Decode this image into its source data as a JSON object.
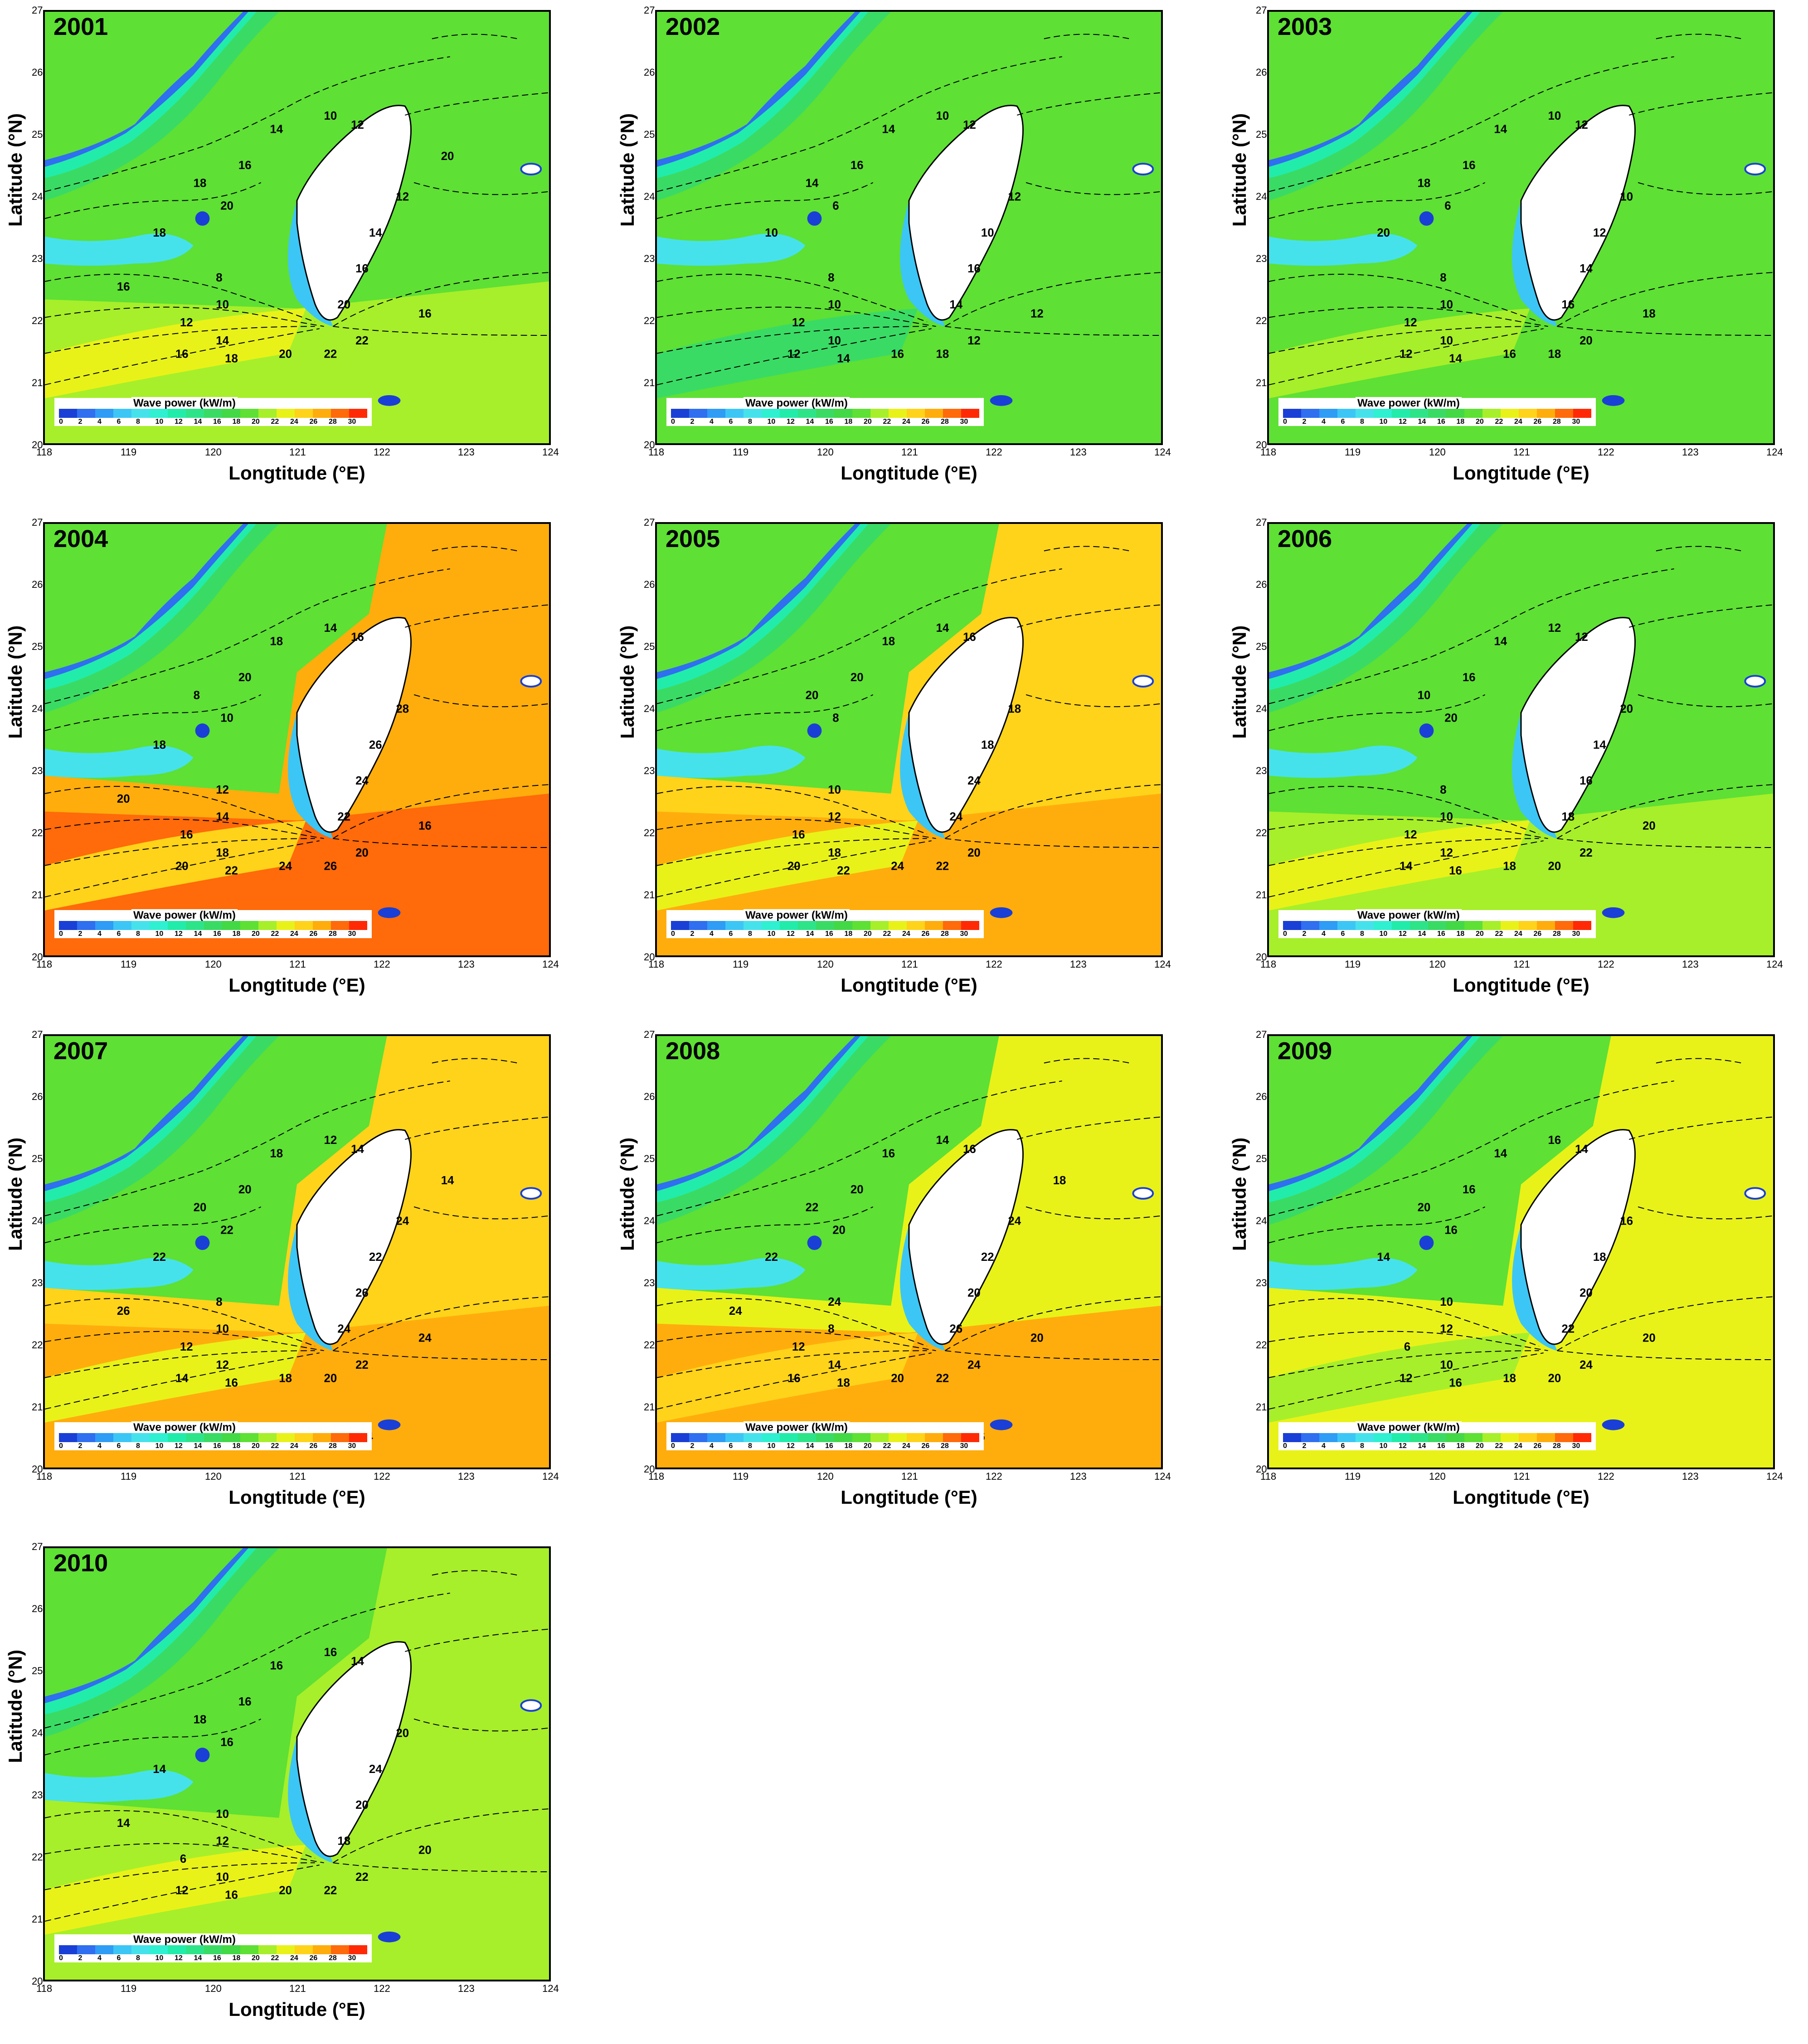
{
  "legend": {
    "title": "Wave power (kW/m)",
    "levels": [
      "0",
      "2",
      "4",
      "6",
      "8",
      "10",
      "12",
      "14",
      "16",
      "18",
      "20",
      "22",
      "24",
      "26",
      "28",
      "30"
    ],
    "colors": [
      "#1a3fd6",
      "#2f6ff0",
      "#2f9cf5",
      "#3cc6f5",
      "#46e2ec",
      "#2ff0d0",
      "#22ecaa",
      "#2ee489",
      "#3adb64",
      "#43d845",
      "#5ee034",
      "#a7ef2a",
      "#e8f219",
      "#ffd31a",
      "#ffad0c",
      "#ff6a0a",
      "#ff2a05"
    ]
  },
  "axes": {
    "xlabel": "Longtitude (°E)",
    "ylabel": "Latitude (°N)",
    "xticks": [
      "118",
      "119",
      "120",
      "121",
      "122",
      "123",
      "124"
    ],
    "yticks": [
      "27",
      "26",
      "25",
      "24",
      "23",
      "22",
      "21",
      "20"
    ]
  },
  "panels": [
    {
      "year": "2001",
      "east": "#5ee034",
      "south": "#a7ef2a",
      "south2": "#e8f219",
      "labels": [
        "10",
        "12",
        "14",
        "16",
        "18",
        "20",
        "8",
        "10",
        "12",
        "14",
        "16",
        "18",
        "20",
        "22",
        "22",
        "20",
        "16",
        "14",
        "12",
        "16",
        "18",
        "16",
        "20"
      ]
    },
    {
      "year": "2002",
      "east": "#5ee034",
      "south": "#5ee034",
      "south2": "#3adb64",
      "labels": [
        "10",
        "12",
        "14",
        "16",
        "14",
        "6",
        "8",
        "10",
        "12",
        "10",
        "12",
        "14",
        "16",
        "18",
        "12",
        "14",
        "16",
        "10",
        "12",
        "12",
        "10"
      ]
    },
    {
      "year": "2003",
      "east": "#5ee034",
      "south": "#5ee034",
      "south2": "#a7ef2a",
      "labels": [
        "10",
        "12",
        "14",
        "16",
        "18",
        "6",
        "8",
        "10",
        "12",
        "10",
        "12",
        "14",
        "16",
        "18",
        "20",
        "16",
        "14",
        "12",
        "10",
        "18",
        "20"
      ]
    },
    {
      "year": "2004",
      "east": "#ffad0c",
      "south": "#ff6a0a",
      "south2": "#ffd31a",
      "labels": [
        "14",
        "16",
        "18",
        "20",
        "8",
        "10",
        "12",
        "14",
        "16",
        "18",
        "20",
        "22",
        "24",
        "26",
        "20",
        "22",
        "24",
        "26",
        "28",
        "16",
        "18",
        "20"
      ]
    },
    {
      "year": "2005",
      "east": "#ffd31a",
      "south": "#ffad0c",
      "south2": "#e8f219",
      "labels": [
        "14",
        "16",
        "18",
        "20",
        "20",
        "8",
        "10",
        "12",
        "16",
        "18",
        "20",
        "22",
        "24",
        "22",
        "20",
        "24",
        "24",
        "18",
        "18"
      ]
    },
    {
      "year": "2006",
      "east": "#5ee034",
      "south": "#a7ef2a",
      "south2": "#e8f219",
      "labels": [
        "12",
        "12",
        "14",
        "16",
        "10",
        "20",
        "8",
        "10",
        "12",
        "12",
        "14",
        "16",
        "18",
        "20",
        "22",
        "18",
        "16",
        "14",
        "20",
        "20"
      ]
    },
    {
      "year": "2007",
      "east": "#ffd31a",
      "south": "#ffad0c",
      "south2": "#e8f219",
      "labels": [
        "12",
        "14",
        "18",
        "20",
        "20",
        "22",
        "8",
        "10",
        "12",
        "12",
        "14",
        "16",
        "18",
        "20",
        "22",
        "24",
        "26",
        "22",
        "24",
        "24",
        "22",
        "26",
        "14",
        "14"
      ]
    },
    {
      "year": "2008",
      "east": "#e8f219",
      "south": "#ffad0c",
      "south2": "#ffd31a",
      "labels": [
        "14",
        "16",
        "16",
        "20",
        "22",
        "20",
        "24",
        "8",
        "12",
        "14",
        "16",
        "18",
        "20",
        "22",
        "24",
        "26",
        "20",
        "22",
        "24",
        "20",
        "22",
        "24",
        "18",
        "16"
      ]
    },
    {
      "year": "2009",
      "east": "#e8f219",
      "south": "#e8f219",
      "south2": "#a7ef2a",
      "labels": [
        "16",
        "14",
        "14",
        "16",
        "20",
        "16",
        "10",
        "12",
        "6",
        "10",
        "12",
        "16",
        "18",
        "20",
        "24",
        "22",
        "20",
        "18",
        "16",
        "20",
        "14"
      ]
    },
    {
      "year": "2010",
      "east": "#a7ef2a",
      "south": "#a7ef2a",
      "south2": "#e8f219",
      "labels": [
        "16",
        "14",
        "16",
        "16",
        "18",
        "16",
        "10",
        "12",
        "6",
        "10",
        "12",
        "16",
        "20",
        "22",
        "22",
        "18",
        "20",
        "24",
        "20",
        "20",
        "14",
        "14"
      ]
    }
  ]
}
